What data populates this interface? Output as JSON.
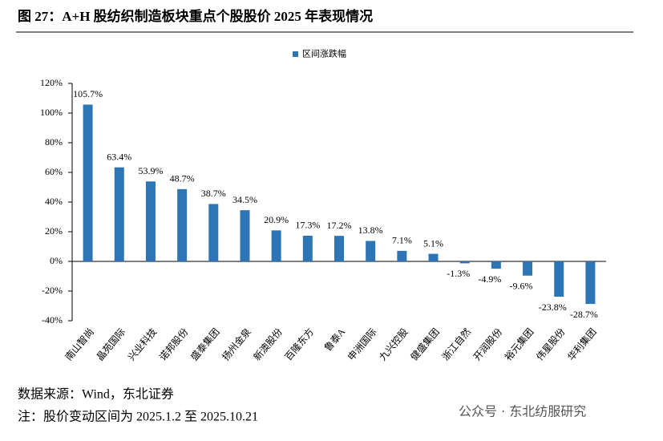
{
  "chart_data": {
    "type": "bar",
    "title": "图 27：A+H 股纺织制造板块重点个股股价 2025 年表现情况",
    "series_name": "区间涨跌幅",
    "color": "#2e75b6",
    "categories": [
      "南山智尚",
      "晶苑国际",
      "兴业科技",
      "诺邦股份",
      "盛泰集团",
      "扬州金泉",
      "新澳股份",
      "百隆东方",
      "鲁泰A",
      "申洲国际",
      "九兴控股",
      "健盛集团",
      "浙江自然",
      "开润股份",
      "裕元集团",
      "伟星股份",
      "华利集团"
    ],
    "values": [
      105.7,
      63.4,
      53.9,
      48.7,
      38.7,
      34.5,
      20.9,
      17.3,
      17.2,
      13.8,
      7.1,
      5.1,
      -1.3,
      -4.9,
      -9.6,
      -23.8,
      -28.7
    ],
    "value_labels": [
      "105.7%",
      "63.4%",
      "53.9%",
      "48.7%",
      "38.7%",
      "34.5%",
      "20.9%",
      "17.3%",
      "17.2%",
      "13.8%",
      "7.1%",
      "5.1%",
      "-1.3%",
      "-4.9%",
      "-9.6%",
      "-23.8%",
      "-28.7%"
    ],
    "ylim": [
      -40,
      120
    ],
    "yticks": [
      {
        "value": -40,
        "label": "-40%"
      },
      {
        "value": -20,
        "label": "-20%"
      },
      {
        "value": 0,
        "label": "0%"
      },
      {
        "value": 20,
        "label": "20%"
      },
      {
        "value": 40,
        "label": "40%"
      },
      {
        "value": 60,
        "label": "60%"
      },
      {
        "value": 80,
        "label": "80%"
      },
      {
        "value": 100,
        "label": "100%"
      },
      {
        "value": 120,
        "label": "120%"
      }
    ],
    "grid": false,
    "source": "数据来源：Wind，东北证券",
    "note": "注：股价变动区间为 2025.1.2 至 2025.10.21",
    "watermark": "公众号 · 东北纺服研究"
  }
}
